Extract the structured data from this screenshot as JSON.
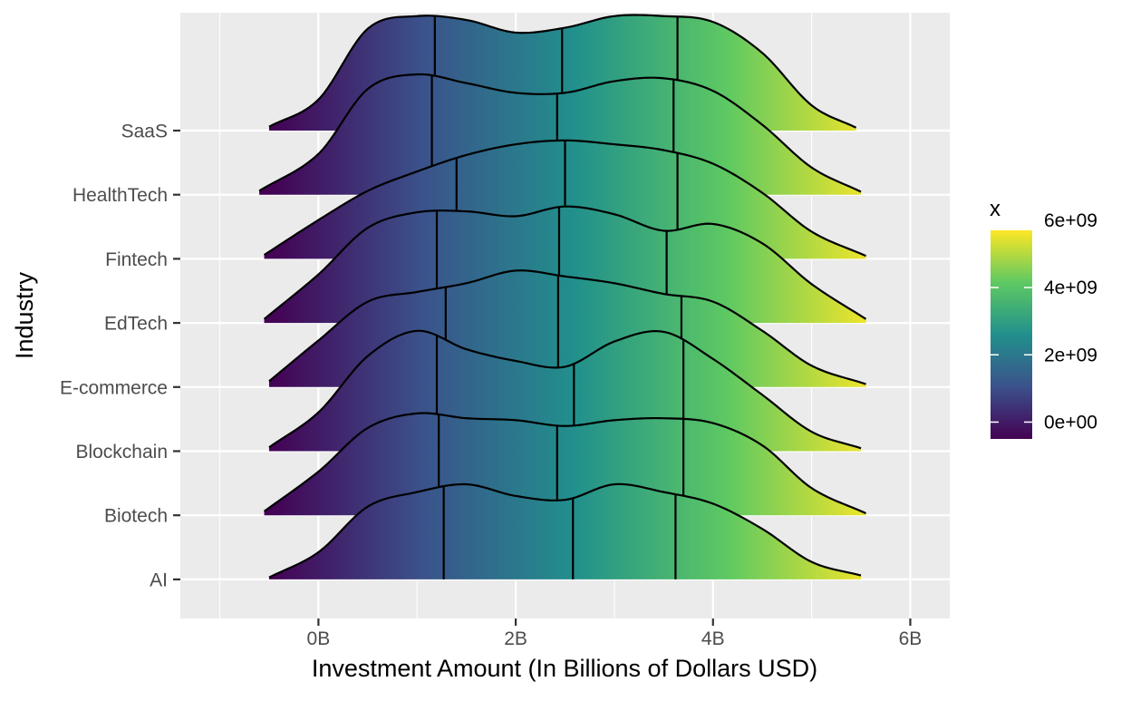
{
  "chart_data": {
    "type": "ridgeline-density",
    "xlabel": "Investment Amount (In Billions of Dollars USD)",
    "ylabel": "Industry",
    "x_ticks": [
      {
        "value": 0,
        "label": "0B"
      },
      {
        "value": 2000000000,
        "label": "2B"
      },
      {
        "value": 4000000000,
        "label": "4B"
      },
      {
        "value": 6000000000,
        "label": "6B"
      }
    ],
    "x_minor_ticks": [
      -1000000000,
      1000000000,
      3000000000,
      5000000000
    ],
    "xlim": [
      -1400000000,
      6400000000
    ],
    "grid": true,
    "legend": {
      "title": "x",
      "position": "right",
      "type": "colorbar",
      "scale": "viridis",
      "limits": [
        -500000000,
        5700000000
      ],
      "ticks": [
        {
          "value": 0,
          "label": "0e+00"
        },
        {
          "value": 2000000000,
          "label": "2e+09"
        },
        {
          "value": 4000000000,
          "label": "4e+09"
        },
        {
          "value": 6000000000,
          "label": "6e+09"
        }
      ]
    },
    "colors": [
      "#440154",
      "#3b528b",
      "#21908c",
      "#5ec962",
      "#fde725"
    ],
    "series": [
      {
        "name": "AI",
        "x_range": [
          -500000000,
          5500000000
        ],
        "density_x": [
          -500000000,
          0,
          500000000,
          1000000000,
          1500000000,
          2000000000,
          2500000000,
          3000000000,
          3500000000,
          4000000000,
          4500000000,
          5000000000,
          5500000000
        ],
        "density_y": [
          0.02,
          0.28,
          0.75,
          0.9,
          0.98,
          0.86,
          0.82,
          0.98,
          0.9,
          0.78,
          0.52,
          0.18,
          0.04
        ],
        "quartiles": [
          1270000000,
          2580000000,
          3620000000
        ]
      },
      {
        "name": "Biotech",
        "x_range": [
          -550000000,
          5550000000
        ],
        "density_x": [
          -550000000,
          0,
          500000000,
          1000000000,
          1500000000,
          2000000000,
          2500000000,
          3000000000,
          3500000000,
          4000000000,
          4500000000,
          5000000000,
          5550000000
        ],
        "density_y": [
          0.04,
          0.45,
          0.9,
          1.05,
          1.0,
          0.98,
          0.92,
          0.98,
          1.0,
          0.95,
          0.72,
          0.28,
          0.02
        ],
        "quartiles": [
          1220000000,
          2420000000,
          3700000000
        ]
      },
      {
        "name": "Blockchain",
        "x_range": [
          -500000000,
          5500000000
        ],
        "density_x": [
          -500000000,
          0,
          500000000,
          1000000000,
          1500000000,
          2000000000,
          2500000000,
          3000000000,
          3500000000,
          4000000000,
          4500000000,
          5000000000,
          5500000000
        ],
        "density_y": [
          0.04,
          0.4,
          0.98,
          1.24,
          1.05,
          0.93,
          0.87,
          1.13,
          1.23,
          0.95,
          0.58,
          0.2,
          0.03
        ],
        "quartiles": [
          1200000000,
          2590000000,
          3700000000
        ]
      },
      {
        "name": "E-commerce",
        "x_range": [
          -500000000,
          5550000000
        ],
        "density_x": [
          -500000000,
          0,
          500000000,
          1000000000,
          1500000000,
          2000000000,
          2500000000,
          3000000000,
          3500000000,
          4000000000,
          4500000000,
          5000000000,
          5550000000
        ],
        "density_y": [
          0.06,
          0.48,
          0.88,
          0.98,
          1.07,
          1.2,
          1.14,
          1.07,
          0.96,
          0.88,
          0.58,
          0.22,
          0.03
        ],
        "quartiles": [
          1290000000,
          2430000000,
          3680000000
        ]
      },
      {
        "name": "EdTech",
        "x_range": [
          -550000000,
          5550000000
        ],
        "density_x": [
          -550000000,
          0,
          500000000,
          1000000000,
          1500000000,
          2000000000,
          2500000000,
          3000000000,
          3500000000,
          4000000000,
          4500000000,
          5000000000,
          5550000000
        ],
        "density_y": [
          0.04,
          0.5,
          0.98,
          1.14,
          1.15,
          1.1,
          1.2,
          1.12,
          0.95,
          1.02,
          0.82,
          0.4,
          0.04
        ],
        "quartiles": [
          1200000000,
          2440000000,
          3530000000
        ]
      },
      {
        "name": "Fintech",
        "x_range": [
          -550000000,
          5550000000
        ],
        "density_x": [
          -550000000,
          0,
          500000000,
          1000000000,
          1500000000,
          2000000000,
          2500000000,
          3000000000,
          3500000000,
          4000000000,
          4500000000,
          5000000000,
          5550000000
        ],
        "density_y": [
          0.04,
          0.4,
          0.7,
          0.9,
          1.07,
          1.18,
          1.22,
          1.18,
          1.12,
          0.98,
          0.68,
          0.28,
          0.03
        ],
        "quartiles": [
          1400000000,
          2500000000,
          3640000000
        ]
      },
      {
        "name": "HealthTech",
        "x_range": [
          -600000000,
          5500000000
        ],
        "density_x": [
          -600000000,
          0,
          500000000,
          1000000000,
          1500000000,
          2000000000,
          2500000000,
          3000000000,
          3500000000,
          4000000000,
          4500000000,
          5000000000,
          5500000000
        ],
        "density_y": [
          0.04,
          0.42,
          1.09,
          1.24,
          1.15,
          1.05,
          1.05,
          1.17,
          1.2,
          1.07,
          0.72,
          0.28,
          0.03
        ],
        "quartiles": [
          1150000000,
          2420000000,
          3600000000
        ]
      },
      {
        "name": "SaaS",
        "x_range": [
          -500000000,
          5450000000
        ],
        "density_x": [
          -500000000,
          0,
          500000000,
          1000000000,
          1500000000,
          2000000000,
          2500000000,
          3000000000,
          3500000000,
          4000000000,
          4500000000,
          5000000000,
          5450000000
        ],
        "density_y": [
          0.04,
          0.32,
          1.05,
          1.18,
          1.14,
          1.01,
          1.06,
          1.18,
          1.18,
          1.12,
          0.8,
          0.26,
          0.03
        ],
        "quartiles": [
          1180000000,
          2470000000,
          3640000000
        ]
      }
    ]
  }
}
